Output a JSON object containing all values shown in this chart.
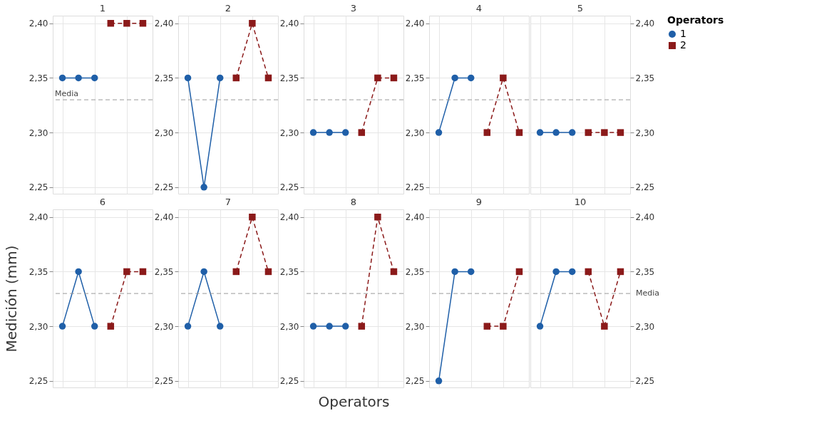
{
  "chart_data": [
    {
      "type": "line",
      "title": "1",
      "categories": [
        null,
        null,
        null,
        null,
        null,
        null
      ],
      "ylim": [
        2.244,
        2.407
      ],
      "yticks": [
        {
          "value": 2.25,
          "label": "2,25"
        },
        {
          "value": 2.3,
          "label": "2,30"
        },
        {
          "value": 2.35,
          "label": "2,35"
        },
        {
          "value": 2.4,
          "label": "2,40"
        }
      ],
      "tick_labels": "y",
      "grid": true,
      "ref_lines": [
        {
          "axis": "y",
          "value": 2.33,
          "label": "Media",
          "color": "#999999",
          "line_style": "dashed"
        }
      ],
      "series": [
        {
          "color": "#1f5fa8",
          "marker": "circle",
          "line_style": "solid",
          "values": [
            2.35,
            2.35,
            2.35,
            null,
            null,
            null
          ]
        },
        {
          "color": "#8b1a1a",
          "marker": "square",
          "line_style": "dashed",
          "values": [
            null,
            null,
            null,
            2.4,
            2.4,
            2.4
          ]
        }
      ]
    },
    {
      "type": "line",
      "title": "2",
      "categories": [
        null,
        null,
        null,
        null,
        null,
        null
      ],
      "ylim": [
        2.244,
        2.407
      ],
      "yticks": [
        {
          "value": 2.25,
          "label": "2,25"
        },
        {
          "value": 2.3,
          "label": "2,30"
        },
        {
          "value": 2.35,
          "label": "2,35"
        },
        {
          "value": 2.4,
          "label": "2,40"
        }
      ],
      "tick_labels": "y",
      "grid": true,
      "ref_lines": [
        {
          "axis": "y",
          "value": 2.33,
          "color": "#999999",
          "line_style": "dashed"
        }
      ],
      "series": [
        {
          "color": "#1f5fa8",
          "marker": "circle",
          "line_style": "solid",
          "values": [
            2.35,
            2.25,
            2.35,
            null,
            null,
            null
          ]
        },
        {
          "color": "#8b1a1a",
          "marker": "square",
          "line_style": "dashed",
          "values": [
            null,
            null,
            null,
            2.35,
            2.4,
            2.35
          ]
        }
      ]
    },
    {
      "type": "line",
      "title": "3",
      "categories": [
        null,
        null,
        null,
        null,
        null,
        null
      ],
      "ylim": [
        2.244,
        2.407
      ],
      "yticks": [
        {
          "value": 2.25,
          "label": "2,25"
        },
        {
          "value": 2.3,
          "label": "2,30"
        },
        {
          "value": 2.35,
          "label": "2,35"
        },
        {
          "value": 2.4,
          "label": "2,40"
        }
      ],
      "tick_labels": "y",
      "grid": true,
      "ref_lines": [
        {
          "axis": "y",
          "value": 2.33,
          "color": "#999999",
          "line_style": "dashed"
        }
      ],
      "series": [
        {
          "color": "#1f5fa8",
          "marker": "circle",
          "line_style": "solid",
          "values": [
            2.3,
            2.3,
            2.3,
            null,
            null,
            null
          ]
        },
        {
          "color": "#8b1a1a",
          "marker": "square",
          "line_style": "dashed",
          "values": [
            null,
            null,
            null,
            2.3,
            2.35,
            2.35
          ]
        }
      ]
    },
    {
      "type": "line",
      "title": "4",
      "categories": [
        null,
        null,
        null,
        null,
        null,
        null
      ],
      "ylim": [
        2.244,
        2.407
      ],
      "yticks": [
        {
          "value": 2.25,
          "label": "2,25"
        },
        {
          "value": 2.3,
          "label": "2,30"
        },
        {
          "value": 2.35,
          "label": "2,35"
        },
        {
          "value": 2.4,
          "label": "2,40"
        }
      ],
      "tick_labels": "y",
      "grid": true,
      "ref_lines": [
        {
          "axis": "y",
          "value": 2.33,
          "color": "#999999",
          "line_style": "dashed"
        }
      ],
      "series": [
        {
          "color": "#1f5fa8",
          "marker": "circle",
          "line_style": "solid",
          "values": [
            2.3,
            2.35,
            2.35,
            null,
            null,
            null
          ]
        },
        {
          "color": "#8b1a1a",
          "marker": "square",
          "line_style": "dashed",
          "values": [
            null,
            null,
            null,
            2.3,
            2.35,
            2.3
          ]
        }
      ]
    },
    {
      "type": "line",
      "title": "5",
      "legend_title": "Operators",
      "legend": "top right",
      "categories": [
        null,
        null,
        null,
        null,
        null,
        null
      ],
      "ylim": [
        2.244,
        2.407
      ],
      "yticks": [
        {
          "value": 2.25,
          "label": "2,25"
        },
        {
          "value": 2.3,
          "label": "2,30"
        },
        {
          "value": 2.35,
          "label": "2,35"
        },
        {
          "value": 2.4,
          "label": "2,40"
        }
      ],
      "tick_labels": "y",
      "grid": true,
      "ref_lines": [
        {
          "axis": "y",
          "value": 2.33,
          "color": "#999999",
          "line_style": "dashed"
        }
      ],
      "series": [
        {
          "name": "1",
          "color": "#1f5fa8",
          "marker": "circle",
          "line_style": "solid",
          "values": [
            2.3,
            2.3,
            2.3,
            null,
            null,
            null
          ]
        },
        {
          "name": "2",
          "color": "#8b1a1a",
          "marker": "square",
          "line_style": "dashed",
          "values": [
            null,
            null,
            null,
            2.3,
            2.3,
            2.3
          ]
        }
      ]
    },
    {
      "type": "line",
      "title": "6",
      "ylabel": "Medición (mm)",
      "categories": [
        null,
        null,
        null,
        null,
        null,
        null
      ],
      "ylim": [
        2.244,
        2.407
      ],
      "yticks": [
        {
          "value": 2.25,
          "label": "2,25"
        },
        {
          "value": 2.3,
          "label": "2,30"
        },
        {
          "value": 2.35,
          "label": "2,35"
        },
        {
          "value": 2.4,
          "label": "2,40"
        }
      ],
      "tick_labels": "y",
      "grid": true,
      "ref_lines": [
        {
          "axis": "y",
          "value": 2.33,
          "color": "#999999",
          "line_style": "dashed"
        }
      ],
      "series": [
        {
          "color": "#1f5fa8",
          "marker": "circle",
          "line_style": "solid",
          "values": [
            2.3,
            2.35,
            2.3,
            null,
            null,
            null
          ]
        },
        {
          "color": "#8b1a1a",
          "marker": "square",
          "line_style": "dashed",
          "values": [
            null,
            null,
            null,
            2.3,
            2.35,
            2.35
          ]
        }
      ]
    },
    {
      "type": "line",
      "title": "7",
      "categories": [
        null,
        null,
        null,
        null,
        null,
        null
      ],
      "ylim": [
        2.244,
        2.407
      ],
      "yticks": [
        {
          "value": 2.25,
          "label": "2,25"
        },
        {
          "value": 2.3,
          "label": "2,30"
        },
        {
          "value": 2.35,
          "label": "2,35"
        },
        {
          "value": 2.4,
          "label": "2,40"
        }
      ],
      "tick_labels": "y",
      "grid": true,
      "ref_lines": [
        {
          "axis": "y",
          "value": 2.33,
          "color": "#999999",
          "line_style": "dashed"
        }
      ],
      "series": [
        {
          "color": "#1f5fa8",
          "marker": "circle",
          "line_style": "solid",
          "values": [
            2.3,
            2.35,
            2.3,
            null,
            null,
            null
          ]
        },
        {
          "color": "#8b1a1a",
          "marker": "square",
          "line_style": "dashed",
          "values": [
            null,
            null,
            null,
            2.35,
            2.4,
            2.35
          ]
        }
      ]
    },
    {
      "type": "line",
      "title": "8",
      "xlabel": "Operators",
      "categories": [
        null,
        null,
        null,
        null,
        null,
        null
      ],
      "ylim": [
        2.244,
        2.407
      ],
      "yticks": [
        {
          "value": 2.25,
          "label": "2,25"
        },
        {
          "value": 2.3,
          "label": "2,30"
        },
        {
          "value": 2.35,
          "label": "2,35"
        },
        {
          "value": 2.4,
          "label": "2,40"
        }
      ],
      "tick_labels": "y",
      "grid": true,
      "ref_lines": [
        {
          "axis": "y",
          "value": 2.33,
          "color": "#999999",
          "line_style": "dashed"
        }
      ],
      "series": [
        {
          "color": "#1f5fa8",
          "marker": "circle",
          "line_style": "solid",
          "values": [
            2.3,
            2.3,
            2.3,
            null,
            null,
            null
          ]
        },
        {
          "color": "#8b1a1a",
          "marker": "square",
          "line_style": "dashed",
          "values": [
            null,
            null,
            null,
            2.3,
            2.4,
            2.35
          ]
        }
      ]
    },
    {
      "type": "line",
      "title": "9",
      "categories": [
        null,
        null,
        null,
        null,
        null,
        null
      ],
      "ylim": [
        2.244,
        2.407
      ],
      "yticks": [
        {
          "value": 2.25,
          "label": "2,25"
        },
        {
          "value": 2.3,
          "label": "2,30"
        },
        {
          "value": 2.35,
          "label": "2,35"
        },
        {
          "value": 2.4,
          "label": "2,40"
        }
      ],
      "tick_labels": "y",
      "grid": true,
      "ref_lines": [
        {
          "axis": "y",
          "value": 2.33,
          "color": "#999999",
          "line_style": "dashed"
        }
      ],
      "series": [
        {
          "color": "#1f5fa8",
          "marker": "circle",
          "line_style": "solid",
          "values": [
            2.25,
            2.35,
            2.35,
            null,
            null,
            null
          ]
        },
        {
          "color": "#8b1a1a",
          "marker": "square",
          "line_style": "dashed",
          "values": [
            null,
            null,
            null,
            2.3,
            2.3,
            2.35
          ]
        }
      ]
    },
    {
      "type": "line",
      "title": "10",
      "categories": [
        null,
        null,
        null,
        null,
        null,
        null
      ],
      "ylim": [
        2.244,
        2.407
      ],
      "yticks": [
        {
          "value": 2.25,
          "label": "2,25"
        },
        {
          "value": 2.3,
          "label": "2,30"
        },
        {
          "value": 2.35,
          "label": "2,35"
        },
        {
          "value": 2.4,
          "label": "2,40"
        }
      ],
      "tick_labels": "y",
      "grid": true,
      "ref_lines": [
        {
          "axis": "y",
          "value": 2.33,
          "label": "Media",
          "color": "#999999",
          "line_style": "dashed"
        }
      ],
      "series": [
        {
          "color": "#1f5fa8",
          "marker": "circle",
          "line_style": "solid",
          "values": [
            2.3,
            2.35,
            2.35,
            null,
            null,
            null
          ]
        },
        {
          "color": "#8b1a1a",
          "marker": "square",
          "line_style": "dashed",
          "values": [
            null,
            null,
            null,
            2.35,
            2.3,
            2.35
          ]
        }
      ]
    }
  ]
}
